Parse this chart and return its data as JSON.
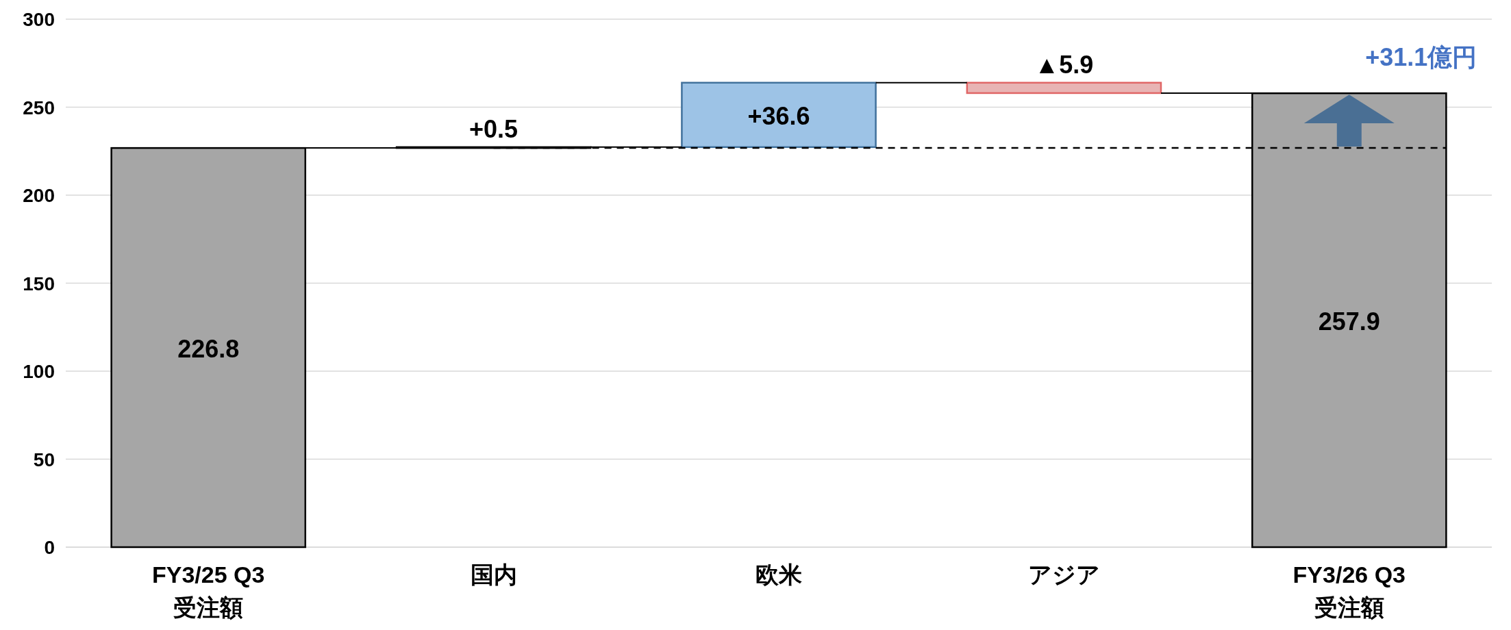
{
  "chart_data": {
    "type": "bar",
    "categories": [
      "FY3/25 Q3\n受注額",
      "国内",
      "欧米",
      "アジア",
      "FY3/26 Q3\n受注額"
    ],
    "values": [
      226.8,
      0.5,
      36.6,
      -5.9,
      257.9
    ],
    "base": [
      0,
      226.8,
      227.3,
      263.9,
      0
    ],
    "colors": [
      "#a6a6a6",
      "#a6a6a6",
      "#9dc3e6",
      "#e8b4b4",
      "#a6a6a6"
    ],
    "value_labels": [
      "226.8",
      "+0.5",
      "+36.6",
      "▲5.9",
      "257.9"
    ],
    "ylim": [
      0,
      300
    ],
    "yticks": [
      0,
      50,
      100,
      150,
      200,
      250,
      300
    ],
    "grid": "y",
    "ref_lines": [
      {
        "axis": "y",
        "value": 226.8,
        "line_style": "dashed",
        "color": "#000000"
      }
    ],
    "annotations": [
      {
        "text": "+31.1億円",
        "x": "FY3/26 Q3\n受注額",
        "y": 257.9
      }
    ]
  }
}
